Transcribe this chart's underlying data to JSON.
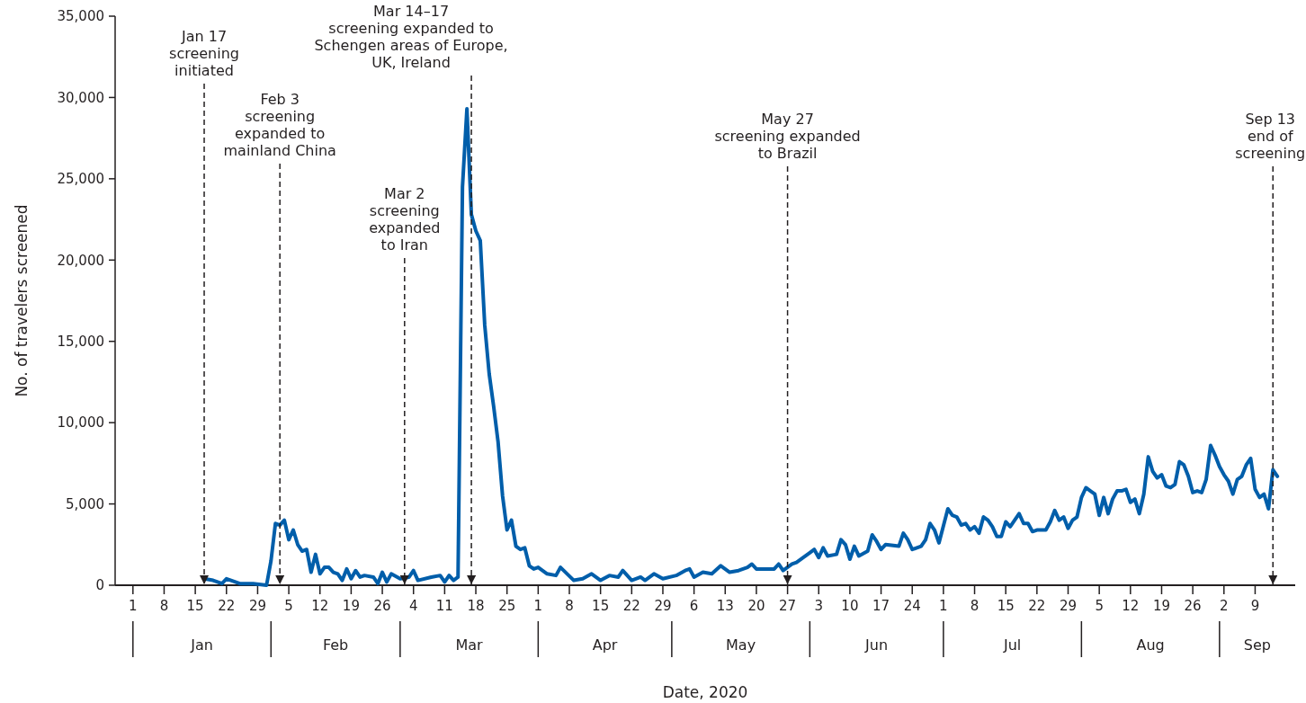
{
  "chart_data": {
    "type": "line",
    "xlabel": "Date, 2020",
    "ylabel": "No. of travelers screened",
    "xlim": [
      "2019-12-28",
      "2020-09-18"
    ],
    "xticks": [
      {
        "value": "2020-01-01",
        "label": "1"
      },
      {
        "value": "2020-01-08",
        "label": "8"
      },
      {
        "value": "2020-01-15",
        "label": "15"
      },
      {
        "value": "2020-01-22",
        "label": "22"
      },
      {
        "value": "2020-01-29",
        "label": "29"
      },
      {
        "value": "2020-02-05",
        "label": "5"
      },
      {
        "value": "2020-02-12",
        "label": "12"
      },
      {
        "value": "2020-02-19",
        "label": "19"
      },
      {
        "value": "2020-02-26",
        "label": "26"
      },
      {
        "value": "2020-03-04",
        "label": "4"
      },
      {
        "value": "2020-03-11",
        "label": "11"
      },
      {
        "value": "2020-03-18",
        "label": "18"
      },
      {
        "value": "2020-03-25",
        "label": "25"
      },
      {
        "value": "2020-04-01",
        "label": "1"
      },
      {
        "value": "2020-04-08",
        "label": "8"
      },
      {
        "value": "2020-04-15",
        "label": "15"
      },
      {
        "value": "2020-04-22",
        "label": "22"
      },
      {
        "value": "2020-04-29",
        "label": "29"
      },
      {
        "value": "2020-05-06",
        "label": "6"
      },
      {
        "value": "2020-05-13",
        "label": "13"
      },
      {
        "value": "2020-05-20",
        "label": "20"
      },
      {
        "value": "2020-05-27",
        "label": "27"
      },
      {
        "value": "2020-06-03",
        "label": "3"
      },
      {
        "value": "2020-06-10",
        "label": "10"
      },
      {
        "value": "2020-06-17",
        "label": "17"
      },
      {
        "value": "2020-06-24",
        "label": "24"
      },
      {
        "value": "2020-07-01",
        "label": "1"
      },
      {
        "value": "2020-07-08",
        "label": "8"
      },
      {
        "value": "2020-07-15",
        "label": "15"
      },
      {
        "value": "2020-07-22",
        "label": "22"
      },
      {
        "value": "2020-07-29",
        "label": "29"
      },
      {
        "value": "2020-08-05",
        "label": "5"
      },
      {
        "value": "2020-08-12",
        "label": "12"
      },
      {
        "value": "2020-08-19",
        "label": "19"
      },
      {
        "value": "2020-08-26",
        "label": "26"
      },
      {
        "value": "2020-09-02",
        "label": "2"
      },
      {
        "value": "2020-09-09",
        "label": "9"
      }
    ],
    "ylim": [
      0,
      35000
    ],
    "yticks": [
      {
        "value": 0,
        "label": "0"
      },
      {
        "value": 5000,
        "label": "5,000"
      },
      {
        "value": 10000,
        "label": "10,000"
      },
      {
        "value": 15000,
        "label": "15,000"
      },
      {
        "value": 20000,
        "label": "20,000"
      },
      {
        "value": 25000,
        "label": "25,000"
      },
      {
        "value": 30000,
        "label": "30,000"
      },
      {
        "value": 35000,
        "label": "35,000"
      }
    ],
    "series": [
      {
        "color": "#005eaa",
        "x": [
          "2020-01-17",
          "2020-01-19",
          "2020-01-21",
          "2020-01-22",
          "2020-01-25",
          "2020-01-28",
          "2020-01-31",
          "2020-02-01",
          "2020-02-02",
          "2020-02-03",
          "2020-02-04",
          "2020-02-05",
          "2020-02-06",
          "2020-02-07",
          "2020-02-08",
          "2020-02-09",
          "2020-02-10",
          "2020-02-11",
          "2020-02-12",
          "2020-02-13",
          "2020-02-14",
          "2020-02-15",
          "2020-02-16",
          "2020-02-17",
          "2020-02-18",
          "2020-02-19",
          "2020-02-20",
          "2020-02-21",
          "2020-02-22",
          "2020-02-24",
          "2020-02-25",
          "2020-02-26",
          "2020-02-27",
          "2020-02-28",
          "2020-03-01",
          "2020-03-03",
          "2020-03-04",
          "2020-03-05",
          "2020-03-08",
          "2020-03-10",
          "2020-03-11",
          "2020-03-12",
          "2020-03-13",
          "2020-03-14",
          "2020-03-15",
          "2020-03-16",
          "2020-03-17",
          "2020-03-18",
          "2020-03-19",
          "2020-03-20",
          "2020-03-21",
          "2020-03-22",
          "2020-03-23",
          "2020-03-24",
          "2020-03-25",
          "2020-03-26",
          "2020-03-27",
          "2020-03-28",
          "2020-03-29",
          "2020-03-30",
          "2020-03-31",
          "2020-04-01",
          "2020-04-03",
          "2020-04-05",
          "2020-04-06",
          "2020-04-09",
          "2020-04-11",
          "2020-04-13",
          "2020-04-15",
          "2020-04-17",
          "2020-04-19",
          "2020-04-20",
          "2020-04-22",
          "2020-04-24",
          "2020-04-25",
          "2020-04-27",
          "2020-04-29",
          "2020-05-02",
          "2020-05-04",
          "2020-05-05",
          "2020-05-06",
          "2020-05-08",
          "2020-05-10",
          "2020-05-12",
          "2020-05-14",
          "2020-05-16",
          "2020-05-18",
          "2020-05-19",
          "2020-05-20",
          "2020-05-22",
          "2020-05-24",
          "2020-05-25",
          "2020-05-26",
          "2020-05-28",
          "2020-05-29",
          "2020-06-01",
          "2020-06-02",
          "2020-06-03",
          "2020-06-04",
          "2020-06-05",
          "2020-06-07",
          "2020-06-08",
          "2020-06-09",
          "2020-06-10",
          "2020-06-11",
          "2020-06-12",
          "2020-06-14",
          "2020-06-15",
          "2020-06-16",
          "2020-06-17",
          "2020-06-18",
          "2020-06-21",
          "2020-06-22",
          "2020-06-23",
          "2020-06-24",
          "2020-06-26",
          "2020-06-27",
          "2020-06-28",
          "2020-06-29",
          "2020-06-30",
          "2020-07-02",
          "2020-07-03",
          "2020-07-04",
          "2020-07-05",
          "2020-07-06",
          "2020-07-07",
          "2020-07-08",
          "2020-07-09",
          "2020-07-10",
          "2020-07-11",
          "2020-07-12",
          "2020-07-13",
          "2020-07-14",
          "2020-07-15",
          "2020-07-16",
          "2020-07-17",
          "2020-07-18",
          "2020-07-19",
          "2020-07-20",
          "2020-07-21",
          "2020-07-22",
          "2020-07-24",
          "2020-07-25",
          "2020-07-26",
          "2020-07-27",
          "2020-07-28",
          "2020-07-29",
          "2020-07-30",
          "2020-07-31",
          "2020-08-01",
          "2020-08-02",
          "2020-08-03",
          "2020-08-04",
          "2020-08-05",
          "2020-08-06",
          "2020-08-07",
          "2020-08-08",
          "2020-08-09",
          "2020-08-10",
          "2020-08-11",
          "2020-08-12",
          "2020-08-13",
          "2020-08-14",
          "2020-08-15",
          "2020-08-16",
          "2020-08-17",
          "2020-08-18",
          "2020-08-19",
          "2020-08-20",
          "2020-08-21",
          "2020-08-22",
          "2020-08-23",
          "2020-08-24",
          "2020-08-25",
          "2020-08-26",
          "2020-08-27",
          "2020-08-28",
          "2020-08-29",
          "2020-08-30",
          "2020-08-31",
          "2020-09-01",
          "2020-09-02",
          "2020-09-03",
          "2020-09-04",
          "2020-09-05",
          "2020-09-06",
          "2020-09-07",
          "2020-09-08",
          "2020-09-09",
          "2020-09-10",
          "2020-09-11",
          "2020-09-12",
          "2020-09-13",
          "2020-09-14"
        ],
        "values": [
          400,
          300,
          100,
          400,
          100,
          100,
          0,
          1500,
          3800,
          3700,
          4000,
          2800,
          3400,
          2500,
          2100,
          2200,
          800,
          1900,
          700,
          1100,
          1100,
          800,
          700,
          300,
          1000,
          400,
          900,
          500,
          600,
          500,
          100,
          800,
          200,
          700,
          400,
          500,
          900,
          300,
          500,
          600,
          200,
          600,
          300,
          500,
          24500,
          29300,
          22800,
          21800,
          21200,
          16000,
          13000,
          11000,
          8800,
          5500,
          3400,
          4000,
          2400,
          2200,
          2300,
          1200,
          1000,
          1100,
          700,
          600,
          1100,
          300,
          400,
          700,
          300,
          600,
          500,
          900,
          300,
          500,
          300,
          700,
          400,
          600,
          900,
          1000,
          500,
          800,
          700,
          1200,
          800,
          900,
          1100,
          1300,
          1000,
          1000,
          1000,
          1300,
          900,
          1300,
          1400,
          2000,
          2200,
          1700,
          2300,
          1800,
          1900,
          2800,
          2500,
          1600,
          2400,
          1800,
          2100,
          3100,
          2700,
          2200,
          2500,
          2400,
          3200,
          2800,
          2200,
          2400,
          2800,
          3800,
          3400,
          2600,
          4700,
          4300,
          4200,
          3700,
          3800,
          3400,
          3600,
          3200,
          4200,
          4000,
          3600,
          3000,
          3000,
          3900,
          3600,
          4000,
          4400,
          3800,
          3800,
          3300,
          3400,
          3400,
          3900,
          4600,
          4000,
          4200,
          3500,
          4000,
          4200,
          5400,
          6000,
          5800,
          5600,
          4300,
          5400,
          4400,
          5300,
          5800,
          5800,
          5900,
          5100,
          5300,
          4400,
          5600,
          7900,
          7000,
          6600,
          6800,
          6100,
          6000,
          6200,
          7600,
          7400,
          6700,
          5700,
          5800,
          5700,
          6500,
          8600,
          8000,
          7300,
          6800,
          6400,
          5600,
          6500,
          6700,
          7400,
          7800,
          5900,
          5400,
          5600,
          4700,
          7100,
          6700
        ]
      }
    ],
    "ref_lines": [
      {
        "axis": "x",
        "value": "2020-01-17",
        "label": "Jan 17\nscreening\ninitiated",
        "line_style": "dashed",
        "color": "#231f20"
      },
      {
        "axis": "x",
        "value": "2020-02-03",
        "label": "Feb 3\nscreening\nexpanded to\nmainland China",
        "line_style": "dashed",
        "color": "#231f20"
      },
      {
        "axis": "x",
        "value": "2020-03-02",
        "label": "Mar 2\nscreening\nexpanded\nto Iran",
        "line_style": "dashed",
        "color": "#231f20"
      },
      {
        "axis": "x",
        "value": "2020-03-17",
        "label": "Mar 14–17\nscreening expanded to\nSchengen areas of Europe,\nUK, Ireland",
        "line_style": "dashed",
        "color": "#231f20"
      },
      {
        "axis": "x",
        "value": "2020-05-27",
        "label": "May 27\nscreening expanded\nto Brazil",
        "line_style": "dashed",
        "color": "#231f20"
      },
      {
        "axis": "x",
        "value": "2020-09-13",
        "label": "Sep 13\nend of\nscreening",
        "line_style": "dashed",
        "color": "#231f20"
      }
    ],
    "annotations": [
      "Jan",
      "Feb",
      "Mar",
      "Apr",
      "May",
      "Jun",
      "Jul",
      "Aug",
      "Sep"
    ],
    "grid": false,
    "marker": "none",
    "line_style": "solid"
  }
}
